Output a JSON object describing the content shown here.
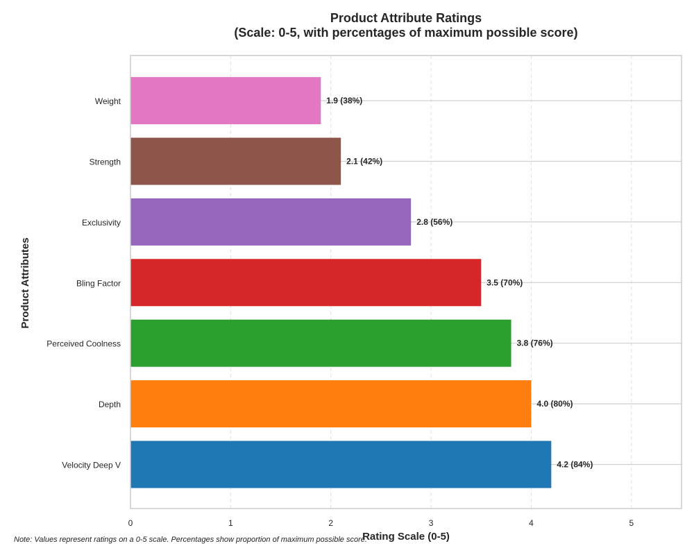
{
  "chart_data": {
    "type": "bar",
    "orientation": "horizontal",
    "title": "Product Attribute Ratings",
    "subtitle": "(Scale: 0-5, with percentages of maximum possible score)",
    "xlabel": "Rating Scale (0-5)",
    "ylabel": "Product Attributes",
    "xlim": [
      0,
      5.5
    ],
    "xticks": [
      "0",
      "1",
      "2",
      "3",
      "4",
      "5"
    ],
    "grid": true,
    "categories": [
      "Velocity Deep V",
      "Depth",
      "Perceived Coolness",
      "Bling Factor",
      "Exclusivity",
      "Strength",
      "Weight"
    ],
    "values": [
      4.2,
      4.0,
      3.8,
      3.5,
      2.8,
      2.1,
      1.9
    ],
    "data_labels": [
      "4.2 (84%)",
      "4.0 (80%)",
      "3.8 (76%)",
      "3.5 (70%)",
      "2.8 (56%)",
      "2.1 (42%)",
      "1.9 (38%)"
    ],
    "colors": [
      "#1f77b4",
      "#ff7f0e",
      "#2ca02c",
      "#d62728",
      "#9467bd",
      "#8c564b",
      "#e377c2"
    ]
  },
  "note": "Note: Values represent ratings on a 0-5 scale. Percentages show proportion of maximum possible score."
}
